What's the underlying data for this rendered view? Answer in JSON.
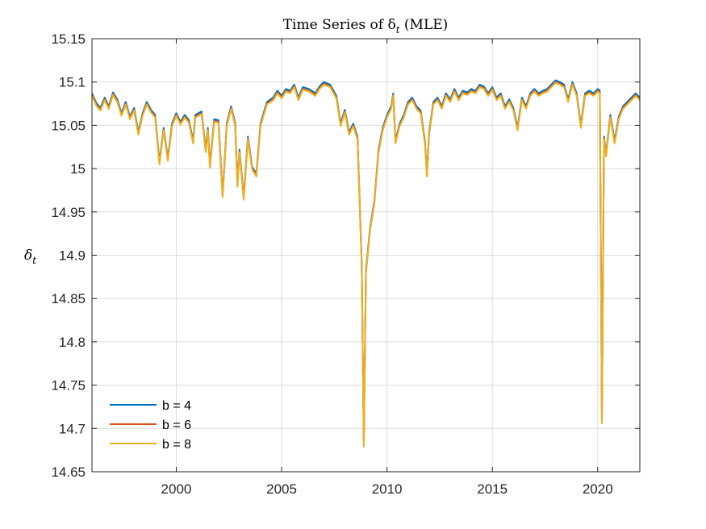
{
  "chart_data": {
    "type": "line",
    "title": "Time Series of δ",
    "title_sub": "t",
    "title_suffix": " (MLE)",
    "ylabel": "δ",
    "ylabel_sub": "t",
    "xlabel": "",
    "xlim": [
      1996.0,
      2022.0
    ],
    "ylim": [
      14.65,
      15.15
    ],
    "xticks": [
      2000,
      2005,
      2010,
      2015,
      2020
    ],
    "xtick_labels": [
      "2000",
      "2005",
      "2010",
      "2015",
      "2020"
    ],
    "yticks": [
      14.65,
      14.7,
      14.75,
      14.8,
      14.85,
      14.9,
      14.95,
      15.0,
      15.05,
      15.1,
      15.15
    ],
    "ytick_labels": [
      "14.65",
      "14.7",
      "14.75",
      "14.8",
      "14.85",
      "14.9",
      "14.95",
      "15",
      "15.05",
      "15.1",
      "15.15"
    ],
    "grid": true,
    "legend_position": "bottom-left",
    "base_series": [
      [
        1996.0,
        15.085
      ],
      [
        1996.2,
        15.074
      ],
      [
        1996.4,
        15.068
      ],
      [
        1996.6,
        15.08
      ],
      [
        1996.8,
        15.07
      ],
      [
        1997.0,
        15.086
      ],
      [
        1997.2,
        15.078
      ],
      [
        1997.4,
        15.062
      ],
      [
        1997.6,
        15.075
      ],
      [
        1997.8,
        15.058
      ],
      [
        1998.0,
        15.068
      ],
      [
        1998.2,
        15.04
      ],
      [
        1998.4,
        15.062
      ],
      [
        1998.6,
        15.075
      ],
      [
        1998.8,
        15.066
      ],
      [
        1999.0,
        15.06
      ],
      [
        1999.2,
        15.006
      ],
      [
        1999.4,
        15.045
      ],
      [
        1999.6,
        15.01
      ],
      [
        1999.8,
        15.05
      ],
      [
        2000.0,
        15.062
      ],
      [
        2000.2,
        15.052
      ],
      [
        2000.4,
        15.06
      ],
      [
        2000.6,
        15.054
      ],
      [
        2000.8,
        15.03
      ],
      [
        2000.9,
        15.06
      ],
      [
        2001.2,
        15.064
      ],
      [
        2001.4,
        15.02
      ],
      [
        2001.5,
        15.045
      ],
      [
        2001.6,
        15.002
      ],
      [
        2001.8,
        15.055
      ],
      [
        2002.0,
        15.054
      ],
      [
        2002.2,
        14.968
      ],
      [
        2002.4,
        15.05
      ],
      [
        2002.6,
        15.07
      ],
      [
        2002.8,
        15.05
      ],
      [
        2002.9,
        14.98
      ],
      [
        2003.0,
        15.02
      ],
      [
        2003.2,
        14.965
      ],
      [
        2003.4,
        15.035
      ],
      [
        2003.6,
        15.0
      ],
      [
        2003.8,
        14.992
      ],
      [
        2004.0,
        15.05
      ],
      [
        2004.3,
        15.075
      ],
      [
        2004.6,
        15.08
      ],
      [
        2004.8,
        15.088
      ],
      [
        2005.0,
        15.082
      ],
      [
        2005.2,
        15.09
      ],
      [
        2005.4,
        15.088
      ],
      [
        2005.6,
        15.095
      ],
      [
        2005.8,
        15.08
      ],
      [
        2006.0,
        15.092
      ],
      [
        2006.3,
        15.09
      ],
      [
        2006.6,
        15.085
      ],
      [
        2006.8,
        15.093
      ],
      [
        2007.0,
        15.098
      ],
      [
        2007.3,
        15.095
      ],
      [
        2007.6,
        15.082
      ],
      [
        2007.8,
        15.05
      ],
      [
        2008.0,
        15.066
      ],
      [
        2008.2,
        15.04
      ],
      [
        2008.4,
        15.05
      ],
      [
        2008.6,
        15.035
      ],
      [
        2008.8,
        14.89
      ],
      [
        2008.9,
        14.68
      ],
      [
        2009.0,
        14.88
      ],
      [
        2009.2,
        14.93
      ],
      [
        2009.4,
        14.96
      ],
      [
        2009.6,
        15.02
      ],
      [
        2009.8,
        15.045
      ],
      [
        2010.0,
        15.06
      ],
      [
        2010.2,
        15.07
      ],
      [
        2010.3,
        15.085
      ],
      [
        2010.4,
        15.03
      ],
      [
        2010.6,
        15.05
      ],
      [
        2010.8,
        15.06
      ],
      [
        2011.0,
        15.075
      ],
      [
        2011.2,
        15.08
      ],
      [
        2011.4,
        15.07
      ],
      [
        2011.6,
        15.065
      ],
      [
        2011.8,
        15.03
      ],
      [
        2011.9,
        14.992
      ],
      [
        2012.0,
        15.04
      ],
      [
        2012.2,
        15.075
      ],
      [
        2012.4,
        15.08
      ],
      [
        2012.6,
        15.07
      ],
      [
        2012.8,
        15.085
      ],
      [
        2013.0,
        15.078
      ],
      [
        2013.2,
        15.09
      ],
      [
        2013.4,
        15.08
      ],
      [
        2013.6,
        15.088
      ],
      [
        2013.8,
        15.086
      ],
      [
        2014.0,
        15.09
      ],
      [
        2014.2,
        15.088
      ],
      [
        2014.4,
        15.095
      ],
      [
        2014.6,
        15.093
      ],
      [
        2014.8,
        15.085
      ],
      [
        2015.0,
        15.092
      ],
      [
        2015.2,
        15.08
      ],
      [
        2015.4,
        15.085
      ],
      [
        2015.6,
        15.07
      ],
      [
        2015.8,
        15.078
      ],
      [
        2016.0,
        15.068
      ],
      [
        2016.2,
        15.045
      ],
      [
        2016.4,
        15.08
      ],
      [
        2016.6,
        15.07
      ],
      [
        2016.8,
        15.085
      ],
      [
        2017.0,
        15.09
      ],
      [
        2017.2,
        15.085
      ],
      [
        2017.4,
        15.088
      ],
      [
        2017.6,
        15.09
      ],
      [
        2017.8,
        15.095
      ],
      [
        2018.0,
        15.1
      ],
      [
        2018.2,
        15.098
      ],
      [
        2018.4,
        15.095
      ],
      [
        2018.6,
        15.078
      ],
      [
        2018.8,
        15.098
      ],
      [
        2019.0,
        15.085
      ],
      [
        2019.2,
        15.048
      ],
      [
        2019.4,
        15.085
      ],
      [
        2019.6,
        15.088
      ],
      [
        2019.8,
        15.085
      ],
      [
        2020.0,
        15.09
      ],
      [
        2020.1,
        15.088
      ],
      [
        2020.2,
        14.707
      ],
      [
        2020.3,
        15.035
      ],
      [
        2020.4,
        15.015
      ],
      [
        2020.6,
        15.06
      ],
      [
        2020.8,
        15.03
      ],
      [
        2021.0,
        15.058
      ],
      [
        2021.2,
        15.07
      ],
      [
        2021.4,
        15.075
      ],
      [
        2021.6,
        15.08
      ],
      [
        2021.8,
        15.085
      ],
      [
        2022.0,
        15.08
      ]
    ],
    "series": [
      {
        "name": "b = 4",
        "color": "#0072BD",
        "offset": 0.002
      },
      {
        "name": "b = 6",
        "color": "#D95319",
        "offset": 0.0
      },
      {
        "name": "b = 8",
        "color": "#EDB120",
        "offset": -0.001
      }
    ]
  }
}
